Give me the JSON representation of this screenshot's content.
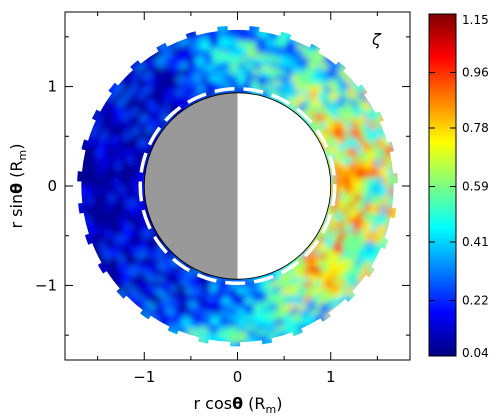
{
  "chart_data": {
    "type": "heatmap",
    "quantity_symbol": "ζ",
    "xlabel": {
      "prefix": "r cos",
      "theta": "θ",
      "unit_open": " (R",
      "unit_sub": "m",
      "unit_close": ")"
    },
    "ylabel": {
      "prefix": "r sin",
      "theta": "θ",
      "unit_open": " (R",
      "unit_sub": "m",
      "unit_close": ")"
    },
    "xlim": [
      -1.85,
      1.85
    ],
    "ylim": [
      -1.75,
      1.75
    ],
    "x_ticks": [
      -1,
      0,
      1
    ],
    "x_tick_labels": [
      "−1",
      "0",
      "1"
    ],
    "y_ticks": [
      -1,
      0,
      1
    ],
    "y_tick_labels": [
      "−1",
      "0",
      "1"
    ],
    "annulus": {
      "inner_radius": 1.0,
      "outer_radius": 1.72
    },
    "colorbar": {
      "min": 0.04,
      "max": 1.15,
      "ticks": [
        0.04,
        0.22,
        0.41,
        0.59,
        0.78,
        0.96,
        1.15
      ],
      "tick_labels": [
        "0.04",
        "0.22",
        "0.41",
        "0.59",
        "0.78",
        "0.96",
        "1.15"
      ],
      "colormap": "jet"
    },
    "planet": {
      "night_color": "#999999",
      "day_color": "#ffffff"
    },
    "boundary_color": "#ffffff"
  }
}
